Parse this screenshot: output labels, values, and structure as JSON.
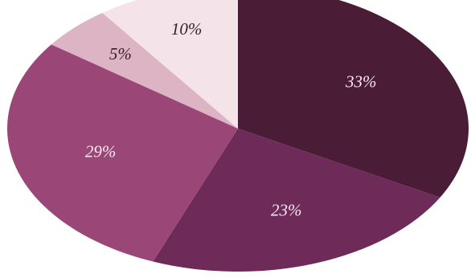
{
  "chart_data": {
    "type": "pie",
    "title": "",
    "start_angle_deg": -90,
    "direction": "clockwise",
    "slices": [
      {
        "label": "33%",
        "value": 33,
        "color": "#4a1c36",
        "label_color": "#f6e9ef"
      },
      {
        "label": "23%",
        "value": 23,
        "color": "#6e2a58",
        "label_color": "#f6e9ef"
      },
      {
        "label": "29%",
        "value": 29,
        "color": "#9a4777",
        "label_color": "#f6e9ef"
      },
      {
        "label": "5%",
        "value": 5,
        "color": "#dcb4c4",
        "label_color": "#3a1d2c"
      },
      {
        "label": "10%",
        "value": 10,
        "color": "#f4e4e9",
        "label_color": "#3a1d2c"
      }
    ]
  }
}
